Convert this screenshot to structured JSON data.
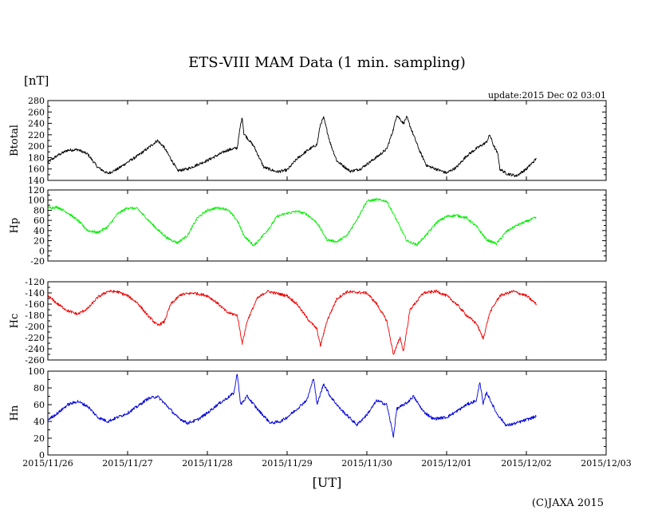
{
  "chart_data": {
    "type": "line",
    "title": "ETS-VIII MAM Data (1 min. sampling)",
    "unit_label": "[nT]",
    "update_text": "update:2015 Dec 02 03:01",
    "xlabel": "[UT]",
    "credit": "(C)JAXA 2015",
    "x_axis": {
      "type": "date",
      "start": "2015/11/26",
      "end": "2015/12/03",
      "ticks": [
        "2015/11/26",
        "2015/11/27",
        "2015/11/28",
        "2015/11/29",
        "2015/11/30",
        "2015/12/01",
        "2015/12/02",
        "2015/12/03"
      ]
    },
    "panels": [
      {
        "name": "Btotal",
        "color": "#000000",
        "ylim": [
          140,
          280
        ],
        "yticks": [
          140,
          160,
          180,
          200,
          220,
          240,
          260,
          280
        ],
        "points": [
          [
            "2015/11/26 00:00",
            172
          ],
          [
            "2015/11/26 03:00",
            184
          ],
          [
            "2015/11/26 06:00",
            193
          ],
          [
            "2015/11/26 09:00",
            194
          ],
          [
            "2015/11/26 12:00",
            186
          ],
          [
            "2015/11/26 15:00",
            163
          ],
          [
            "2015/11/26 18:00",
            152
          ],
          [
            "2015/11/26 21:00",
            160
          ],
          [
            "2015/11/27 00:00",
            172
          ],
          [
            "2015/11/27 03:00",
            183
          ],
          [
            "2015/11/27 06:00",
            196
          ],
          [
            "2015/11/27 09:00",
            210
          ],
          [
            "2015/11/27 11:00",
            198
          ],
          [
            "2015/11/27 14:00",
            168
          ],
          [
            "2015/11/27 15:00",
            157
          ],
          [
            "2015/11/27 18:00",
            160
          ],
          [
            "2015/11/28 00:00",
            175
          ],
          [
            "2015/11/28 06:00",
            193
          ],
          [
            "2015/11/28 09:00",
            197
          ],
          [
            "2015/11/28 10:00",
            238
          ],
          [
            "2015/11/28 10:30",
            250
          ],
          [
            "2015/11/28 11:00",
            222
          ],
          [
            "2015/11/28 14:00",
            200
          ],
          [
            "2015/11/28 17:00",
            163
          ],
          [
            "2015/11/28 21:00",
            155
          ],
          [
            "2015/11/29 00:00",
            158
          ],
          [
            "2015/11/29 03:00",
            178
          ],
          [
            "2015/11/29 06:00",
            192
          ],
          [
            "2015/11/29 09:00",
            203
          ],
          [
            "2015/11/29 10:00",
            238
          ],
          [
            "2015/11/29 11:00",
            250
          ],
          [
            "2015/11/29 13:00",
            205
          ],
          [
            "2015/11/29 15:00",
            174
          ],
          [
            "2015/11/29 19:00",
            156
          ],
          [
            "2015/11/29 22:00",
            160
          ],
          [
            "2015/11/30 03:00",
            181
          ],
          [
            "2015/11/30 06:00",
            195
          ],
          [
            "2015/11/30 08:00",
            230
          ],
          [
            "2015/11/30 09:00",
            255
          ],
          [
            "2015/11/30 11:00",
            240
          ],
          [
            "2015/11/30 12:00",
            251
          ],
          [
            "2015/11/30 14:00",
            220
          ],
          [
            "2015/11/30 16:00",
            190
          ],
          [
            "2015/11/30 18:00",
            166
          ],
          [
            "2015/12/01 00:00",
            153
          ],
          [
            "2015/12/01 03:00",
            163
          ],
          [
            "2015/12/01 06:00",
            183
          ],
          [
            "2015/12/01 09:00",
            196
          ],
          [
            "2015/12/01 12:00",
            207
          ],
          [
            "2015/12/01 13:00",
            220
          ],
          [
            "2015/12/01 14:00",
            203
          ],
          [
            "2015/12/01 15:30",
            185
          ],
          [
            "2015/12/01 16:00",
            160
          ],
          [
            "2015/12/01 18:00",
            152
          ],
          [
            "2015/12/01 21:00",
            148
          ],
          [
            "2015/12/02 00:00",
            160
          ],
          [
            "2015/12/02 03:00",
            178
          ]
        ]
      },
      {
        "name": "Hp",
        "color": "#00ee00",
        "ylim": [
          -20,
          120
        ],
        "yticks": [
          -20,
          0,
          20,
          40,
          60,
          80,
          100,
          120
        ],
        "points": [
          [
            "2015/11/26 00:00",
            85
          ],
          [
            "2015/11/26 03:00",
            86
          ],
          [
            "2015/11/26 06:00",
            75
          ],
          [
            "2015/11/26 09:00",
            60
          ],
          [
            "2015/11/26 12:00",
            40
          ],
          [
            "2015/11/26 15:00",
            36
          ],
          [
            "2015/11/26 18:00",
            47
          ],
          [
            "2015/11/26 21:00",
            73
          ],
          [
            "2015/11/27 00:00",
            85
          ],
          [
            "2015/11/27 03:00",
            83
          ],
          [
            "2015/11/27 06:00",
            62
          ],
          [
            "2015/11/27 09:00",
            42
          ],
          [
            "2015/11/27 12:00",
            25
          ],
          [
            "2015/11/27 15:00",
            16
          ],
          [
            "2015/11/27 18:00",
            30
          ],
          [
            "2015/11/27 21:00",
            65
          ],
          [
            "2015/11/28 00:00",
            80
          ],
          [
            "2015/11/28 03:00",
            85
          ],
          [
            "2015/11/28 06:00",
            82
          ],
          [
            "2015/11/28 09:00",
            60
          ],
          [
            "2015/11/28 11:00",
            30
          ],
          [
            "2015/11/28 14:00",
            10
          ],
          [
            "2015/11/28 16:00",
            25
          ],
          [
            "2015/11/28 19:00",
            48
          ],
          [
            "2015/11/28 21:00",
            68
          ],
          [
            "2015/11/29 00:00",
            74
          ],
          [
            "2015/11/29 03:00",
            78
          ],
          [
            "2015/11/29 06:00",
            72
          ],
          [
            "2015/11/29 09:00",
            55
          ],
          [
            "2015/11/29 12:00",
            22
          ],
          [
            "2015/11/29 15:00",
            18
          ],
          [
            "2015/11/29 18:00",
            30
          ],
          [
            "2015/11/29 21:00",
            62
          ],
          [
            "2015/11/30 00:00",
            98
          ],
          [
            "2015/11/30 03:00",
            101
          ],
          [
            "2015/11/30 06:00",
            98
          ],
          [
            "2015/11/30 09:00",
            60
          ],
          [
            "2015/11/30 12:00",
            20
          ],
          [
            "2015/11/30 15:00",
            12
          ],
          [
            "2015/11/30 18:00",
            32
          ],
          [
            "2015/11/30 21:00",
            56
          ],
          [
            "2015/12/01 00:00",
            68
          ],
          [
            "2015/12/01 03:00",
            70
          ],
          [
            "2015/12/01 06:00",
            65
          ],
          [
            "2015/12/01 09:00",
            48
          ],
          [
            "2015/12/01 12:00",
            22
          ],
          [
            "2015/12/01 15:00",
            14
          ],
          [
            "2015/12/01 18:00",
            38
          ],
          [
            "2015/12/01 21:00",
            50
          ],
          [
            "2015/12/02 00:00",
            58
          ],
          [
            "2015/12/02 03:00",
            66
          ]
        ]
      },
      {
        "name": "Hc",
        "color": "#ee0000",
        "ylim": [
          -260,
          -120
        ],
        "yticks": [
          -260,
          -240,
          -220,
          -200,
          -180,
          -160,
          -140,
          -120
        ],
        "points": [
          [
            "2015/11/26 00:00",
            -145
          ],
          [
            "2015/11/26 03:00",
            -160
          ],
          [
            "2015/11/26 06:00",
            -172
          ],
          [
            "2015/11/26 09:00",
            -178
          ],
          [
            "2015/11/26 12:00",
            -168
          ],
          [
            "2015/11/26 15:00",
            -148
          ],
          [
            "2015/11/26 18:00",
            -137
          ],
          [
            "2015/11/26 21:00",
            -138
          ],
          [
            "2015/11/27 00:00",
            -145
          ],
          [
            "2015/11/27 03:00",
            -158
          ],
          [
            "2015/11/27 06:00",
            -180
          ],
          [
            "2015/11/27 09:00",
            -198
          ],
          [
            "2015/11/27 11:00",
            -192
          ],
          [
            "2015/11/27 13:00",
            -160
          ],
          [
            "2015/11/27 16:00",
            -143
          ],
          [
            "2015/11/27 20:00",
            -140
          ],
          [
            "2015/11/28 00:00",
            -145
          ],
          [
            "2015/11/28 03:00",
            -158
          ],
          [
            "2015/11/28 06:00",
            -175
          ],
          [
            "2015/11/28 09:00",
            -180
          ],
          [
            "2015/11/28 10:30",
            -230
          ],
          [
            "2015/11/28 12:00",
            -190
          ],
          [
            "2015/11/28 15:00",
            -150
          ],
          [
            "2015/11/28 18:00",
            -137
          ],
          [
            "2015/11/29 00:00",
            -145
          ],
          [
            "2015/11/29 03:00",
            -160
          ],
          [
            "2015/11/29 06:00",
            -185
          ],
          [
            "2015/11/29 09:00",
            -205
          ],
          [
            "2015/11/29 10:00",
            -235
          ],
          [
            "2015/11/29 12:00",
            -190
          ],
          [
            "2015/11/29 15:00",
            -150
          ],
          [
            "2015/11/29 18:00",
            -138
          ],
          [
            "2015/11/30 00:00",
            -140
          ],
          [
            "2015/11/30 03:00",
            -160
          ],
          [
            "2015/11/30 06:00",
            -190
          ],
          [
            "2015/11/30 08:00",
            -250
          ],
          [
            "2015/11/30 10:00",
            -220
          ],
          [
            "2015/11/30 11:00",
            -245
          ],
          [
            "2015/11/30 13:00",
            -170
          ],
          [
            "2015/11/30 17:00",
            -140
          ],
          [
            "2015/11/30 21:00",
            -137
          ],
          [
            "2015/12/01 00:00",
            -145
          ],
          [
            "2015/12/01 03:00",
            -160
          ],
          [
            "2015/12/01 06:00",
            -180
          ],
          [
            "2015/12/01 09:00",
            -195
          ],
          [
            "2015/12/01 11:00",
            -222
          ],
          [
            "2015/12/01 13:00",
            -175
          ],
          [
            "2015/12/01 16:00",
            -145
          ],
          [
            "2015/12/01 20:00",
            -137
          ],
          [
            "2015/12/02 00:00",
            -145
          ],
          [
            "2015/12/02 03:00",
            -160
          ]
        ]
      },
      {
        "name": "Hn",
        "color": "#0000dd",
        "ylim": [
          0,
          100
        ],
        "yticks": [
          0,
          20,
          40,
          60,
          80,
          100
        ],
        "points": [
          [
            "2015/11/26 00:00",
            42
          ],
          [
            "2015/11/26 03:00",
            50
          ],
          [
            "2015/11/26 06:00",
            60
          ],
          [
            "2015/11/26 09:00",
            64
          ],
          [
            "2015/11/26 12:00",
            58
          ],
          [
            "2015/11/26 15:00",
            45
          ],
          [
            "2015/11/26 18:00",
            40
          ],
          [
            "2015/11/26 21:00",
            45
          ],
          [
            "2015/11/27 00:00",
            50
          ],
          [
            "2015/11/27 03:00",
            58
          ],
          [
            "2015/11/27 06:00",
            67
          ],
          [
            "2015/11/27 09:00",
            70
          ],
          [
            "2015/11/27 12:00",
            58
          ],
          [
            "2015/11/27 15:00",
            45
          ],
          [
            "2015/11/27 18:00",
            38
          ],
          [
            "2015/11/27 21:00",
            42
          ],
          [
            "2015/11/28 00:00",
            50
          ],
          [
            "2015/11/28 03:00",
            60
          ],
          [
            "2015/11/28 06:00",
            68
          ],
          [
            "2015/11/28 08:00",
            74
          ],
          [
            "2015/11/28 09:00",
            98
          ],
          [
            "2015/11/28 10:00",
            60
          ],
          [
            "2015/11/28 12:00",
            70
          ],
          [
            "2015/11/28 15:00",
            55
          ],
          [
            "2015/11/28 19:00",
            38
          ],
          [
            "2015/11/28 22:00",
            40
          ],
          [
            "2015/11/29 00:00",
            45
          ],
          [
            "2015/11/29 03:00",
            55
          ],
          [
            "2015/11/29 06:00",
            66
          ],
          [
            "2015/11/29 08:00",
            92
          ],
          [
            "2015/11/29 09:00",
            60
          ],
          [
            "2015/11/29 11:00",
            85
          ],
          [
            "2015/11/29 13:00",
            70
          ],
          [
            "2015/11/29 16:00",
            55
          ],
          [
            "2015/11/29 21:00",
            36
          ],
          [
            "2015/11/30 00:00",
            48
          ],
          [
            "2015/11/30 03:00",
            65
          ],
          [
            "2015/11/30 06:00",
            60
          ],
          [
            "2015/11/30 08:00",
            22
          ],
          [
            "2015/11/30 09:00",
            55
          ],
          [
            "2015/11/30 12:00",
            62
          ],
          [
            "2015/11/30 14:00",
            70
          ],
          [
            "2015/11/30 17:00",
            52
          ],
          [
            "2015/11/30 20:00",
            43
          ],
          [
            "2015/12/01 00:00",
            45
          ],
          [
            "2015/12/01 03:00",
            52
          ],
          [
            "2015/12/01 06:00",
            60
          ],
          [
            "2015/12/01 09:00",
            65
          ],
          [
            "2015/12/01 10:00",
            88
          ],
          [
            "2015/12/01 11:00",
            60
          ],
          [
            "2015/12/01 12:00",
            75
          ],
          [
            "2015/12/01 15:00",
            50
          ],
          [
            "2015/12/01 18:00",
            35
          ],
          [
            "2015/12/01 21:00",
            38
          ],
          [
            "2015/12/02 00:00",
            42
          ],
          [
            "2015/12/02 03:00",
            46
          ]
        ]
      }
    ]
  }
}
